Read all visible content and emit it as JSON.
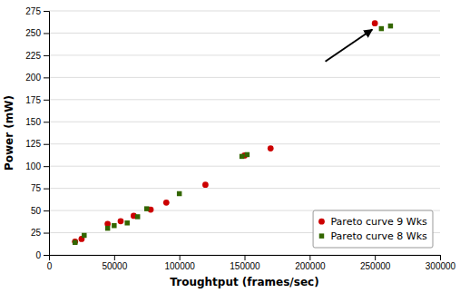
{
  "chart_data": {
    "type": "scatter",
    "xlabel": "Troughtput (frames/sec)",
    "ylabel": "Power (mW)",
    "xlim": [
      0,
      300000
    ],
    "ylim": [
      0,
      275
    ],
    "xticks": [
      0,
      50000,
      100000,
      150000,
      200000,
      250000,
      300000
    ],
    "yticks": [
      0,
      25,
      50,
      75,
      100,
      125,
      150,
      175,
      200,
      225,
      250,
      275
    ],
    "series": [
      {
        "name": "Pareto curve 9 Wks",
        "color": "#cc0000",
        "marker": "circle",
        "x": [
          20000,
          25000,
          45000,
          55000,
          65000,
          78000,
          90000,
          120000,
          150000,
          170000,
          250000
        ],
        "values": [
          15,
          18,
          35,
          38,
          44,
          51,
          59,
          79,
          112,
          120,
          261
        ]
      },
      {
        "name": "Pareto curve 8 Wks",
        "color": "#336600",
        "marker": "square",
        "x": [
          20000,
          27000,
          45000,
          50000,
          60000,
          68000,
          75000,
          100000,
          148000,
          152000,
          255000,
          262000
        ],
        "values": [
          14,
          22,
          30,
          33,
          36,
          43,
          52,
          69,
          111,
          113,
          255,
          258
        ]
      }
    ],
    "arrow": {
      "x": [
        212000,
        248000
      ],
      "y": [
        218,
        254
      ],
      "color": "black"
    },
    "grid": "y",
    "legend": "lower right"
  }
}
